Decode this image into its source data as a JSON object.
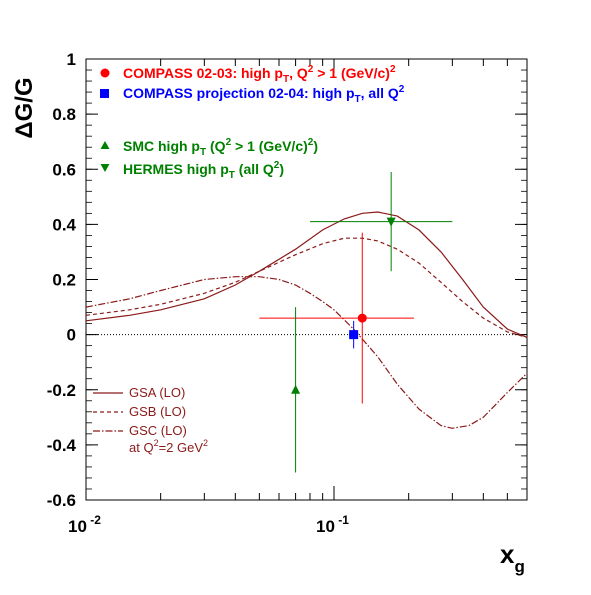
{
  "chart_data": {
    "type": "scatter",
    "title": "",
    "xlabel": "x",
    "xlabel_sub": "g",
    "ylabel": "ΔG/G",
    "xscale": "log",
    "xlim": [
      0.01,
      0.6
    ],
    "ylim": [
      -0.6,
      1.0
    ],
    "grid": false,
    "y_ticks": [
      "-0.6",
      "-0.4",
      "-0.2",
      "0",
      "0.2",
      "0.4",
      "0.6",
      "0.8",
      "1"
    ],
    "x_ticks": [
      {
        "base": "10",
        "exp": "-2",
        "value": 0.01
      },
      {
        "base": "10",
        "exp": "-1",
        "value": 0.1
      }
    ],
    "reference_line": {
      "y": 0,
      "style": "dotted"
    },
    "measurements": [
      {
        "name": "COMPASS 02-03",
        "marker": "circle",
        "color": "#ff0000",
        "x": 0.13,
        "y": 0.06,
        "x_low": 0.05,
        "x_high": 0.21,
        "y_low": -0.25,
        "y_high": 0.37
      },
      {
        "name": "COMPASS projection 02-04",
        "marker": "square",
        "color": "#0000ff",
        "x": 0.12,
        "y": 0.0,
        "x_low": 0.115,
        "x_high": 0.125,
        "y_low": -0.05,
        "y_high": 0.05
      },
      {
        "name": "SMC",
        "marker": "triangle-up",
        "color": "#008000",
        "x": 0.07,
        "y": -0.2,
        "x_low": 0.07,
        "x_high": 0.07,
        "y_low": -0.5,
        "y_high": 0.1
      },
      {
        "name": "HERMES",
        "marker": "triangle-down",
        "color": "#008000",
        "x": 0.17,
        "y": 0.41,
        "x_low": 0.08,
        "x_high": 0.3,
        "y_low": 0.23,
        "y_high": 0.59
      }
    ],
    "curves": [
      {
        "name": "GSA (LO)",
        "style": "solid",
        "color": "#8b1a1a",
        "x": [
          0.01,
          0.015,
          0.02,
          0.03,
          0.04,
          0.05,
          0.07,
          0.09,
          0.11,
          0.13,
          0.15,
          0.18,
          0.22,
          0.27,
          0.33,
          0.4,
          0.5,
          0.6
        ],
        "y": [
          0.05,
          0.07,
          0.09,
          0.13,
          0.18,
          0.23,
          0.31,
          0.38,
          0.42,
          0.44,
          0.445,
          0.43,
          0.38,
          0.3,
          0.2,
          0.1,
          0.02,
          -0.01
        ]
      },
      {
        "name": "GSB (LO)",
        "style": "dashed",
        "color": "#8b1a1a",
        "x": [
          0.01,
          0.015,
          0.02,
          0.03,
          0.04,
          0.05,
          0.07,
          0.09,
          0.11,
          0.13,
          0.15,
          0.18,
          0.22,
          0.27,
          0.33,
          0.4,
          0.5,
          0.6
        ],
        "y": [
          0.07,
          0.09,
          0.11,
          0.15,
          0.19,
          0.23,
          0.29,
          0.33,
          0.35,
          0.35,
          0.34,
          0.31,
          0.26,
          0.19,
          0.12,
          0.06,
          0.01,
          -0.01
        ]
      },
      {
        "name": "GSC (LO)",
        "style": "dashdot",
        "color": "#8b1a1a",
        "x": [
          0.01,
          0.015,
          0.02,
          0.03,
          0.04,
          0.05,
          0.06,
          0.07,
          0.08,
          0.09,
          0.1,
          0.12,
          0.15,
          0.18,
          0.22,
          0.27,
          0.3,
          0.35,
          0.4,
          0.5,
          0.6
        ],
        "y": [
          0.1,
          0.13,
          0.16,
          0.2,
          0.21,
          0.21,
          0.2,
          0.18,
          0.15,
          0.12,
          0.09,
          0.02,
          -0.08,
          -0.18,
          -0.27,
          -0.33,
          -0.34,
          -0.33,
          -0.3,
          -0.21,
          -0.14
        ]
      }
    ]
  },
  "legend_top": {
    "compass_0203": {
      "text": "COMPASS 02-03: high p",
      "sub": "T",
      "rest": ", Q",
      "sup": "2",
      "rest2": " > 1 (GeV/c)",
      "sup2": "2"
    },
    "compass_proj": {
      "text": "COMPASS projection 02-04: high p",
      "sub": "T",
      "rest": ", all Q",
      "sup": "2"
    },
    "smc": {
      "text": "SMC high p",
      "sub": "T",
      "rest": " (Q",
      "sup": "2",
      "rest2": " > 1 (GeV/c)",
      "sup2": "2",
      "rest3": ")"
    },
    "hermes": {
      "text": "HERMES high p",
      "sub": "T",
      "rest": " (all Q",
      "sup": "2",
      "rest2": ")"
    }
  },
  "legend_curves": {
    "gsa": "GSA (LO)",
    "gsb": "GSB (LO)",
    "gsc": "GSC (LO)",
    "note_text": "at Q",
    "note_sup": "2",
    "note_rest": "=2 GeV",
    "note_sup2": "2"
  },
  "colors": {
    "compass": "#ff0000",
    "projection": "#0000ff",
    "green": "#008000",
    "curve": "#8b1a1a"
  }
}
